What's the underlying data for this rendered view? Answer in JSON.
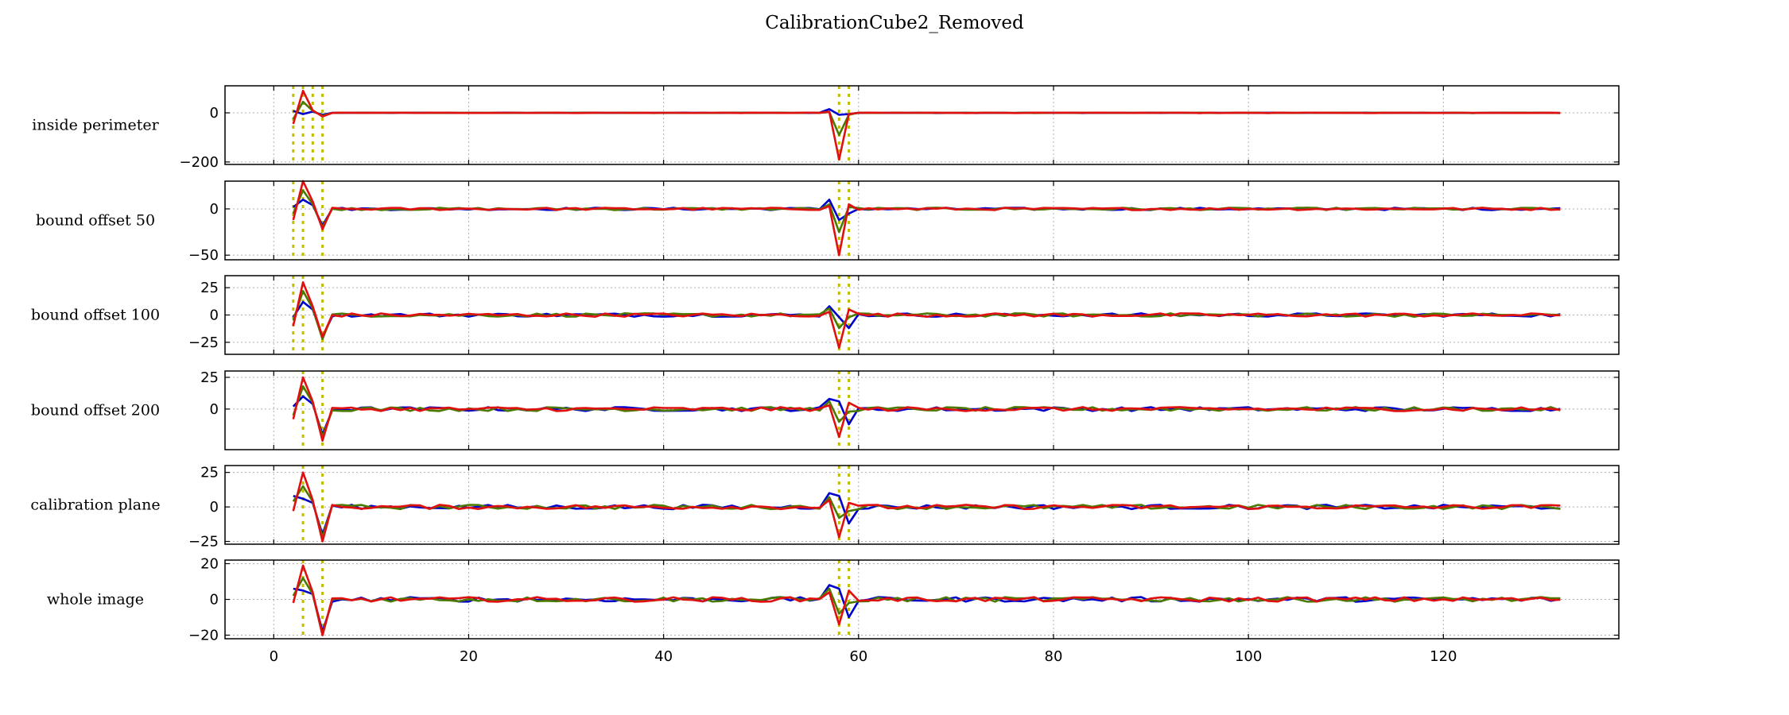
{
  "chart_data": {
    "type": "line",
    "title": "CalibrationCube2_Removed",
    "xlim": [
      -5,
      138
    ],
    "xticks": [
      0,
      20,
      40,
      60,
      80,
      100,
      120
    ],
    "x_start": 2,
    "x_end": 132,
    "series_colors": {
      "blue": "#0000cc",
      "green": "#4a7a00",
      "red": "#e01010"
    },
    "marker_color": "#bfbf00",
    "grid": true,
    "subplots": [
      {
        "label": "inside perimeter",
        "ylim": [
          -210,
          110
        ],
        "yticks": [
          0,
          -200
        ],
        "vlines": [
          2,
          3,
          4,
          5,
          58,
          59
        ],
        "anomalies": {
          "blue": {
            "2": 8,
            "3": -5,
            "4": 5,
            "5": -8,
            "57": 15,
            "58": -8,
            "59": -5
          },
          "green": {
            "2": -25,
            "3": 45,
            "4": 8,
            "5": -12,
            "57": 3,
            "58": -90,
            "59": -8
          },
          "red": {
            "2": -45,
            "3": 90,
            "4": 10,
            "5": -15,
            "57": 5,
            "58": -190,
            "59": -5
          }
        },
        "noise": 0.8
      },
      {
        "label": "bound offset 50",
        "ylim": [
          -55,
          30
        ],
        "yticks": [
          0,
          -50
        ],
        "vlines": [
          2,
          3,
          5,
          58,
          59
        ],
        "anomalies": {
          "blue": {
            "2": 2,
            "3": 10,
            "4": 4,
            "5": -18,
            "57": 10,
            "58": -12,
            "59": -5
          },
          "green": {
            "2": -5,
            "3": 20,
            "4": 5,
            "5": -20,
            "57": 5,
            "58": -25,
            "59": 2
          },
          "red": {
            "2": -12,
            "3": 35,
            "4": 8,
            "5": -22,
            "57": 3,
            "58": -50,
            "59": 5
          }
        },
        "noise": 1.3
      },
      {
        "label": "bound offset 100",
        "ylim": [
          -36,
          36
        ],
        "yticks": [
          25,
          0,
          -25
        ],
        "vlines": [
          2,
          3,
          5,
          58,
          59
        ],
        "anomalies": {
          "blue": {
            "2": -2,
            "3": 12,
            "4": 5,
            "5": -20,
            "57": 8,
            "58": -2,
            "59": -12
          },
          "green": {
            "2": -5,
            "3": 22,
            "4": 6,
            "5": -22,
            "57": 6,
            "58": -12,
            "59": -2
          },
          "red": {
            "2": -10,
            "3": 30,
            "4": 8,
            "5": -20,
            "57": 3,
            "58": -30,
            "59": 5
          }
        },
        "noise": 1.6
      },
      {
        "label": "bound offset 200",
        "ylim": [
          -32,
          30
        ],
        "yticks": [
          25,
          0
        ],
        "vlines": [
          3,
          5,
          58,
          59
        ],
        "anomalies": {
          "blue": {
            "2": 2,
            "3": 10,
            "4": 4,
            "5": -20,
            "57": 8,
            "58": 6,
            "59": -12
          },
          "green": {
            "2": -5,
            "3": 18,
            "4": 5,
            "5": -22,
            "57": 6,
            "58": -10,
            "59": -2
          },
          "red": {
            "2": -8,
            "3": 25,
            "4": 6,
            "5": -25,
            "57": 3,
            "58": -22,
            "59": 5
          }
        },
        "noise": 1.6
      },
      {
        "label": "calibration plane",
        "ylim": [
          -27,
          30
        ],
        "yticks": [
          25,
          0,
          -25
        ],
        "vlines": [
          3,
          5,
          58,
          59
        ],
        "anomalies": {
          "blue": {
            "2": 8,
            "3": 6,
            "4": 3,
            "5": -20,
            "57": 10,
            "58": 8,
            "59": -12
          },
          "green": {
            "2": 4,
            "3": 15,
            "4": 4,
            "5": -22,
            "57": 7,
            "58": -8,
            "59": -3
          },
          "red": {
            "2": -3,
            "3": 25,
            "4": 5,
            "5": -25,
            "57": 5,
            "58": -22,
            "59": 3
          }
        },
        "noise": 1.6
      },
      {
        "label": "whole image",
        "ylim": [
          -22,
          22
        ],
        "yticks": [
          20,
          0,
          -20
        ],
        "vlines": [
          3,
          5,
          58,
          59
        ],
        "anomalies": {
          "blue": {
            "2": 6,
            "3": 5,
            "4": 3,
            "5": -18,
            "57": 8,
            "58": 6,
            "59": -10
          },
          "green": {
            "2": 2,
            "3": 12,
            "4": 3,
            "5": -20,
            "57": 6,
            "58": -8,
            "59": -2
          },
          "red": {
            "2": -2,
            "3": 19,
            "4": 4,
            "5": -20,
            "57": 4,
            "58": -14,
            "59": 5
          }
        },
        "noise": 1.3
      }
    ]
  }
}
